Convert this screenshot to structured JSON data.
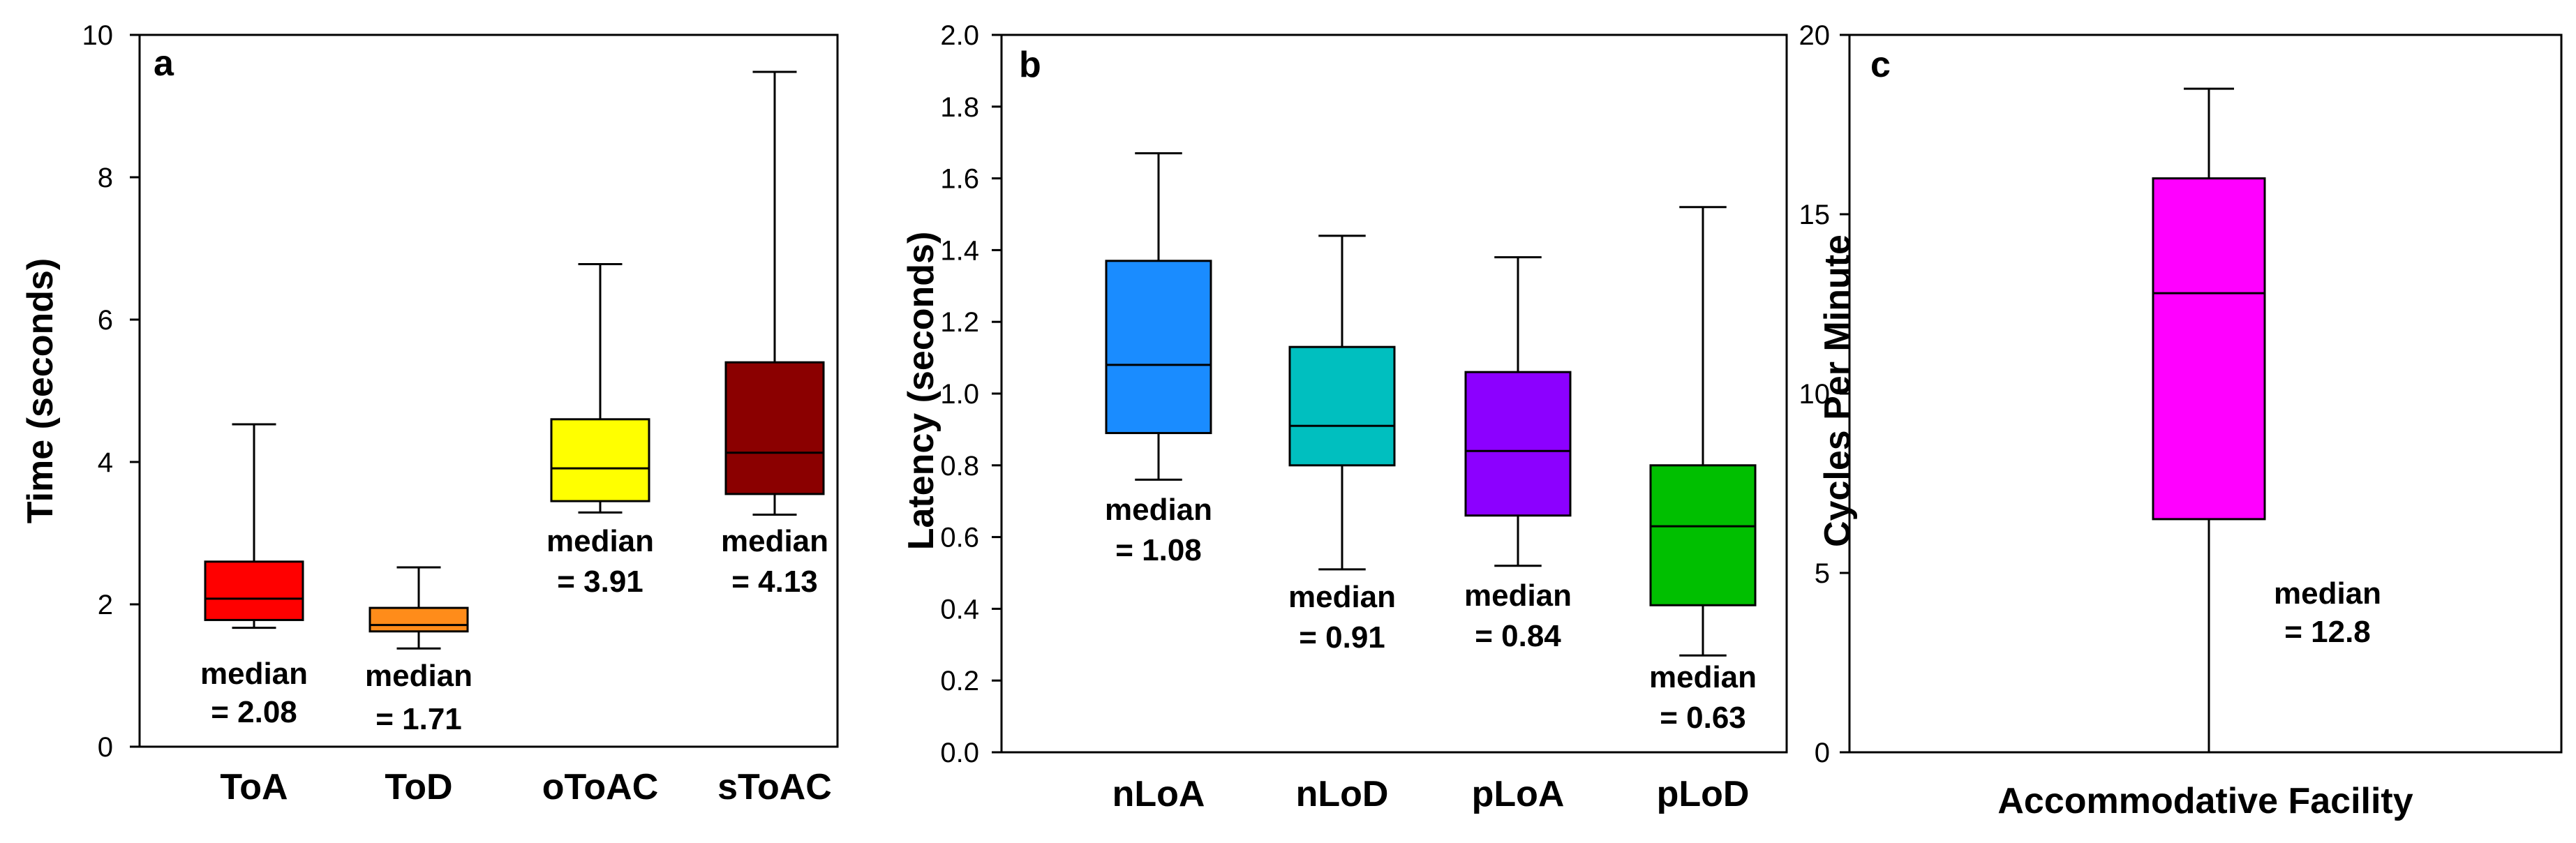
{
  "chart_data": [
    {
      "type": "box",
      "panel_letter": "a",
      "ylabel": "Time (seconds)",
      "xlabel": "",
      "ylim": [
        0,
        10
      ],
      "yticks": [
        "0",
        "2",
        "4",
        "6",
        "8",
        "10"
      ],
      "categories": [
        "ToA",
        "ToD",
        "oToAC",
        "sToAC"
      ],
      "boxes": [
        {
          "name": "ToA",
          "whisker_low": 1.67,
          "q1": 1.78,
          "median": 2.08,
          "q3": 2.6,
          "whisker_high": 4.53,
          "color": "#ff0000",
          "median_text": [
            "median",
            "= 2.08"
          ]
        },
        {
          "name": "ToD",
          "whisker_low": 1.38,
          "q1": 1.62,
          "median": 1.71,
          "q3": 1.95,
          "whisker_high": 2.52,
          "color": "#ff8c1a",
          "median_text": [
            "median",
            "= 1.71"
          ]
        },
        {
          "name": "oToAC",
          "whisker_low": 3.29,
          "q1": 3.45,
          "median": 3.91,
          "q3": 4.6,
          "whisker_high": 6.78,
          "color": "#ffff00",
          "median_text": [
            "median",
            "= 3.91"
          ]
        },
        {
          "name": "sToAC",
          "whisker_low": 3.26,
          "q1": 3.55,
          "median": 4.13,
          "q3": 5.4,
          "whisker_high": 9.48,
          "color": "#8b0000",
          "median_text": [
            "median",
            "= 4.13"
          ]
        }
      ]
    },
    {
      "type": "box",
      "panel_letter": "b",
      "ylabel": "Latency (seconds)",
      "xlabel": "",
      "ylim": [
        0.0,
        2.0
      ],
      "yticks": [
        "0.0",
        "0.2",
        "0.4",
        "0.6",
        "0.8",
        "1.0",
        "1.2",
        "1.4",
        "1.6",
        "1.8",
        "2.0"
      ],
      "categories": [
        "nLoA",
        "nLoD",
        "pLoA",
        "pLoD"
      ],
      "boxes": [
        {
          "name": "nLoA",
          "whisker_low": 0.76,
          "q1": 0.89,
          "median": 1.08,
          "q3": 1.37,
          "whisker_high": 1.67,
          "color": "#1a8cff",
          "median_text": [
            "median",
            "= 1.08"
          ]
        },
        {
          "name": "nLoD",
          "whisker_low": 0.51,
          "q1": 0.8,
          "median": 0.91,
          "q3": 1.13,
          "whisker_high": 1.44,
          "color": "#00bfbf",
          "median_text": [
            "median",
            "= 0.91"
          ]
        },
        {
          "name": "pLoA",
          "whisker_low": 0.52,
          "q1": 0.66,
          "median": 0.84,
          "q3": 1.06,
          "whisker_high": 1.38,
          "color": "#8c00ff",
          "median_text": [
            "median",
            "= 0.84"
          ]
        },
        {
          "name": "pLoD",
          "whisker_low": 0.27,
          "q1": 0.41,
          "median": 0.63,
          "q3": 0.8,
          "whisker_high": 1.52,
          "color": "#00bf00",
          "median_text": [
            "median",
            "= 0.63"
          ]
        }
      ]
    },
    {
      "type": "box",
      "panel_letter": "c",
      "ylabel": "Cycles Per Minute",
      "xlabel": "Accommodative Facility",
      "ylim": [
        0,
        20
      ],
      "yticks": [
        "0",
        "5",
        "10",
        "15",
        "20"
      ],
      "categories": [
        ""
      ],
      "boxes": [
        {
          "name": "Accommodative Facility",
          "whisker_low": 0.0,
          "q1": 6.5,
          "median": 12.8,
          "q3": 16.0,
          "whisker_high": 18.5,
          "color": "#ff00ff",
          "median_text": [
            "median",
            "= 12.8"
          ]
        }
      ]
    }
  ]
}
